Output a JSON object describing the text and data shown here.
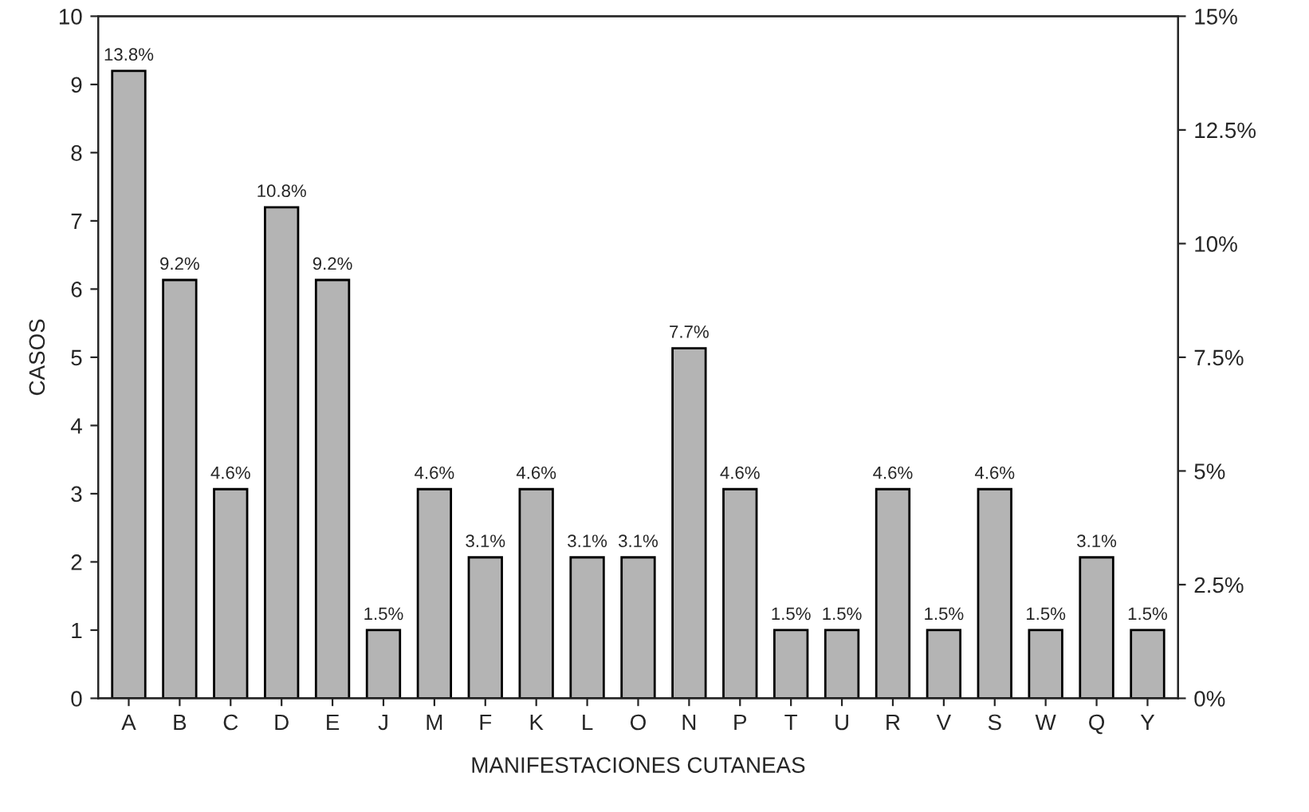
{
  "chart_data": {
    "type": "bar",
    "xlabel": "MANIFESTACIONES CUTANEAS",
    "ylabel": "CASOS",
    "categories": [
      "A",
      "B",
      "C",
      "D",
      "E",
      "J",
      "M",
      "F",
      "K",
      "L",
      "O",
      "N",
      "P",
      "T",
      "U",
      "R",
      "V",
      "S",
      "W",
      "Q",
      "Y"
    ],
    "series": [
      {
        "axis": "y2",
        "color": "#b4b4b4",
        "values": [
          13.8,
          9.2,
          4.6,
          10.8,
          9.2,
          1.5,
          4.6,
          3.1,
          4.6,
          3.1,
          3.1,
          7.7,
          4.6,
          1.5,
          1.5,
          4.6,
          1.5,
          4.6,
          1.5,
          3.1,
          1.5
        ],
        "value_labels": [
          "13.8%",
          "9.2%",
          "4.6%",
          "10.8%",
          "9.2%",
          "1.5%",
          "4.6%",
          "3.1%",
          "4.6%",
          "3.1%",
          "3.1%",
          "7.7%",
          "4.6%",
          "1.5%",
          "1.5%",
          "4.6%",
          "1.5%",
          "4.6%",
          "1.5%",
          "3.1%",
          "1.5%"
        ]
      }
    ],
    "ylim": [
      0,
      10
    ],
    "yticks": [
      0,
      1,
      2,
      3,
      4,
      5,
      6,
      7,
      8,
      9,
      10
    ],
    "y2lim": [
      0,
      15
    ],
    "y2ticks": [
      {
        "value": 0,
        "label": "0%"
      },
      {
        "value": 2.5,
        "label": "2.5%"
      },
      {
        "value": 5,
        "label": "5%"
      },
      {
        "value": 7.5,
        "label": "7.5%"
      },
      {
        "value": 10,
        "label": "10%"
      },
      {
        "value": 12.5,
        "label": "12.5%"
      },
      {
        "value": 15,
        "label": "15%"
      }
    ],
    "grid": false,
    "legend": false
  }
}
